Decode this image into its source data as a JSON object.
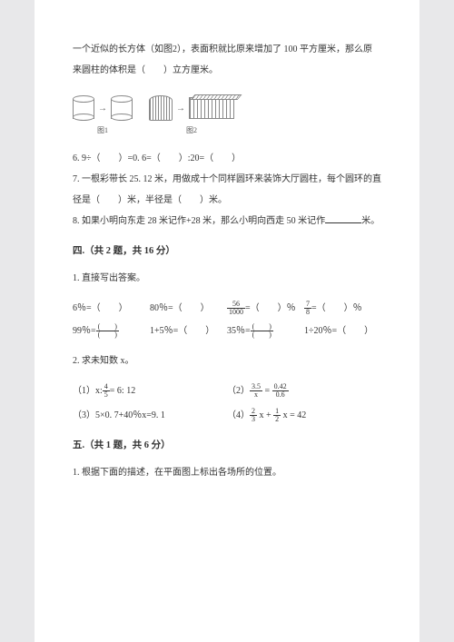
{
  "intro": {
    "line1": "一个近似的长方体（如图2），表面积就比原来增加了 100 平方厘米，那么原",
    "line2": "来圆柱的体积是（　　）立方厘米。"
  },
  "figures": {
    "label1": "图1",
    "label2": "图2"
  },
  "q6": "6. 9÷（　　）=0. 6=（　　）:20=（　　）",
  "q7a": "7. 一根彩带长 25. 12 米，用做成十个同样圆环来装饰大厅圆柱，每个圆环的直",
  "q7b": "径是（　　）米，半径是（　　）米。",
  "q8a": "8. 如果小明向东走 28 米记作+28 米，那么小明向西走 50 米记作",
  "q8b": "米。",
  "sec4": {
    "title": "四.（共 2 题，共 16 分）",
    "q1": "1. 直接写出答案。",
    "q2": "2. 求未知数 x。"
  },
  "calc": {
    "r1c1a": "6％=（　　）",
    "r1c2a": "80％=（　　）",
    "r1c3a_n": "56",
    "r1c3a_d": "1000",
    "r1c3a_suf": "=（　　）％",
    "r1c4_n": "7",
    "r1c4_d": "8",
    "r1c4_suf": "=（　　）％",
    "r2c1_pre": "99％=",
    "r2c1_n": "(　　)",
    "r2c1_d": "(　　)",
    "r2c2": "1+5％=（　　）",
    "r2c3_pre": "35％=",
    "r2c3_n": "(　　)",
    "r2c3_d": "(　　)",
    "r2c4": "1÷20％=（　　）"
  },
  "eqs": {
    "e1_pre": "（1）x:",
    "e1_n": "4",
    "e1_d": "5",
    "e1_suf": "= 6: 12",
    "e2_pre": "（2）",
    "e2_l_n": "3.5",
    "e2_l_d": "x",
    "e2_mid": "=",
    "e2_r_n": "0.42",
    "e2_r_d": "0.6",
    "e3": "（3）5×0. 7+40％x=9. 1",
    "e4_pre": "（4）",
    "e4_a_n": "2",
    "e4_a_d": "3",
    "e4_mid1": "x +",
    "e4_b_n": "1",
    "e4_b_d": "2",
    "e4_suf": "x = 42"
  },
  "sec5": {
    "title": "五.（共 1 题，共 6 分）",
    "q1": "1. 根据下面的描述，在平面图上标出各场所的位置。"
  }
}
